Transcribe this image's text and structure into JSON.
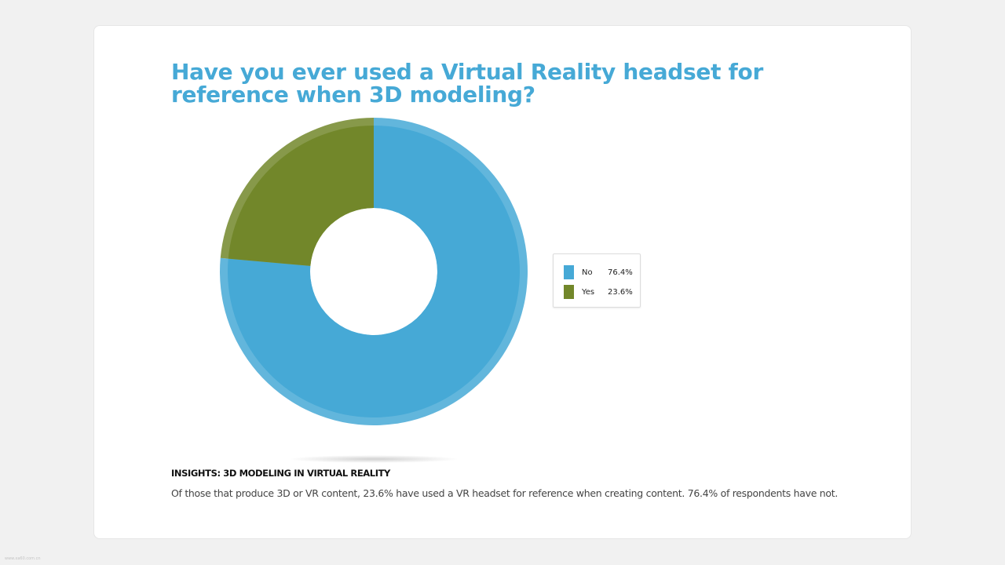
{
  "chart_data": {
    "type": "pie",
    "title": "Have you ever used a Virtual Reality headset for reference when 3D modeling?",
    "donut": true,
    "legend_position": "right",
    "slices": [
      {
        "label": "No",
        "value": 76.4,
        "display": "76.4%",
        "color": "#46a9d6"
      },
      {
        "label": "Yes",
        "value": 23.6,
        "display": "23.6%",
        "color": "#72872a"
      }
    ]
  },
  "insights": {
    "heading": "INSIGHTS: 3D MODELING IN VIRTUAL REALITY",
    "body": "Of those that produce 3D or VR content, 23.6% have used a VR headset for reference when creating content. 76.4% of respondents have not."
  },
  "watermark": "www.xa60.com.cn",
  "colors": {
    "title": "#46a9d6",
    "background": "#f1f1f1",
    "card": "#ffffff"
  }
}
